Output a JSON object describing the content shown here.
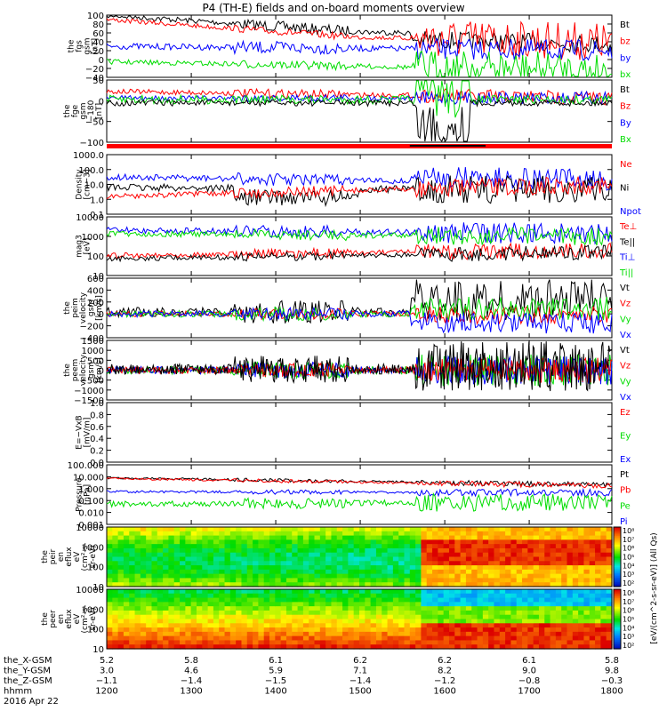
{
  "title": "P4 (TH-E) fields and on-board moments overview",
  "colors": {
    "black": "#000000",
    "red": "#ff0000",
    "green": "#00dd00",
    "blue": "#0000ff"
  },
  "chart_data": [
    {
      "type": "line",
      "ylabel": [
        "the",
        "fgs",
        "gsm",
        "[nT]"
      ],
      "ylim": [
        -40,
        100
      ],
      "yticks": [
        "100",
        "80",
        "60",
        "40",
        "20",
        "0",
        "−20",
        "−40"
      ],
      "series": [
        {
          "name": "Bt",
          "color": "black"
        },
        {
          "name": "bz",
          "color": "red"
        },
        {
          "name": "by",
          "color": "blue"
        },
        {
          "name": "bx",
          "color": "green"
        }
      ]
    },
    {
      "type": "line",
      "ylabel": [
        "the",
        "fge",
        "gsm",
        "−180",
        "[nT]"
      ],
      "ylim": [
        -130,
        60
      ],
      "yticks": [
        "50",
        "0",
        "−50",
        "−100"
      ],
      "series": [
        {
          "name": "Bt",
          "color": "black"
        },
        {
          "name": "Bz",
          "color": "red"
        },
        {
          "name": "By",
          "color": "blue"
        },
        {
          "name": "Bx",
          "color": "green"
        }
      ]
    },
    {
      "type": "line",
      "ylabel": [
        "Density",
        "[cm−3]"
      ],
      "yscale": "log",
      "ylim": [
        0.1,
        1000
      ],
      "yticks": [
        "1000.0",
        "100.0",
        "10.0",
        "1.0",
        "0.1"
      ],
      "series": [
        {
          "name": "Ne",
          "color": "red"
        },
        {
          "name": "Ni",
          "color": "black"
        },
        {
          "name": "Npot",
          "color": "blue"
        }
      ]
    },
    {
      "type": "line",
      "ylabel": [
        "mag3",
        "[eV]"
      ],
      "yscale": "log",
      "ylim": [
        3,
        10000
      ],
      "yticks": [
        "10000",
        "1000",
        "100",
        "10"
      ],
      "series": [
        {
          "name": "Te⊥",
          "color": "red"
        },
        {
          "name": "Te||",
          "color": "black"
        },
        {
          "name": "Ti⊥",
          "color": "blue"
        },
        {
          "name": "Ti||",
          "color": "green"
        }
      ]
    },
    {
      "type": "line",
      "ylabel": [
        "the",
        "peim",
        "velocity",
        "gsm",
        "[km/s]"
      ],
      "ylim": [
        -400,
        600
      ],
      "yticks": [
        "600",
        "400",
        "200",
        "0",
        "−200",
        "−400"
      ],
      "series": [
        {
          "name": "Vt",
          "color": "black"
        },
        {
          "name": "Vz",
          "color": "red"
        },
        {
          "name": "Vy",
          "color": "green"
        },
        {
          "name": "Vx",
          "color": "blue"
        }
      ]
    },
    {
      "type": "line",
      "ylabel": [
        "the",
        "peem",
        "velocity",
        "gsm",
        "[km/s]"
      ],
      "ylim": [
        -1500,
        1500
      ],
      "yticks": [
        "1500",
        "1000",
        "500",
        "0",
        "−500",
        "−1000",
        "−1500"
      ],
      "series": [
        {
          "name": "Vt",
          "color": "black"
        },
        {
          "name": "Vz",
          "color": "red"
        },
        {
          "name": "Vy",
          "color": "green"
        },
        {
          "name": "Vx",
          "color": "blue"
        }
      ]
    },
    {
      "type": "line",
      "ylabel": [
        "E=−VxB",
        "[mV/m]"
      ],
      "ylim": [
        0,
        1
      ],
      "yticks": [
        "1.0",
        "0.8",
        "0.6",
        "0.4",
        "0.2",
        "0.0"
      ],
      "series": [
        {
          "name": "Ez",
          "color": "red"
        },
        {
          "name": "Ey",
          "color": "green"
        },
        {
          "name": "Ex",
          "color": "blue"
        }
      ]
    },
    {
      "type": "line",
      "ylabel": [
        "Pressure",
        "[nPa]"
      ],
      "yscale": "log",
      "ylim": [
        0.001,
        100
      ],
      "yticks": [
        "100.000",
        "10.000",
        "1.000",
        "0.100",
        "0.010",
        "0.001"
      ],
      "series": [
        {
          "name": "Pt",
          "color": "black"
        },
        {
          "name": "Pb",
          "color": "red"
        },
        {
          "name": "Pe",
          "color": "green"
        },
        {
          "name": "Pi",
          "color": "blue"
        }
      ]
    },
    {
      "type": "heatmap",
      "ylabel": [
        "the",
        "peir",
        "en",
        "eflux",
        "eV",
        "(cm²-s-",
        "sr-eV)"
      ],
      "yticks": [
        "10000",
        "1000",
        "100",
        "10"
      ],
      "colorbar": {
        "label": "[eV/(cm^2-s-sr-eV)] (All Qs)",
        "ticks": [
          "10⁸",
          "10⁷",
          "10⁶",
          "10⁵",
          "10⁴",
          "10³",
          "10²"
        ]
      }
    },
    {
      "type": "heatmap",
      "ylabel": [
        "the",
        "peer",
        "en",
        "eflux",
        "eV",
        "(cm²-s-",
        "sr-eV)"
      ],
      "yticks": [
        "10000",
        "1000",
        "100",
        "10"
      ],
      "colorbar": {
        "label": "[eV/(cm^2-s-sr-eV)]",
        "ticks": [
          "10⁸",
          "10⁷",
          "10⁶",
          "10⁵",
          "10⁴",
          "10³",
          "10²"
        ]
      }
    }
  ],
  "x_axis": {
    "rows": [
      {
        "label": "the_X-GSM",
        "values": [
          "5.2",
          "5.8",
          "6.1",
          "6.2",
          "6.2",
          "6.1",
          "5.8"
        ]
      },
      {
        "label": "the_Y-GSM",
        "values": [
          "3.0",
          "4.6",
          "5.9",
          "7.1",
          "8.2",
          "9.0",
          "9.8"
        ]
      },
      {
        "label": "the_Z-GSM",
        "values": [
          "−1.1",
          "−1.4",
          "−1.5",
          "−1.4",
          "−1.2",
          "−0.8",
          "−0.3"
        ]
      },
      {
        "label": "hhmm",
        "values": [
          "1200",
          "1300",
          "1400",
          "1500",
          "1600",
          "1700",
          "1800"
        ]
      },
      {
        "label": "2016 Apr 22",
        "values": []
      }
    ]
  }
}
